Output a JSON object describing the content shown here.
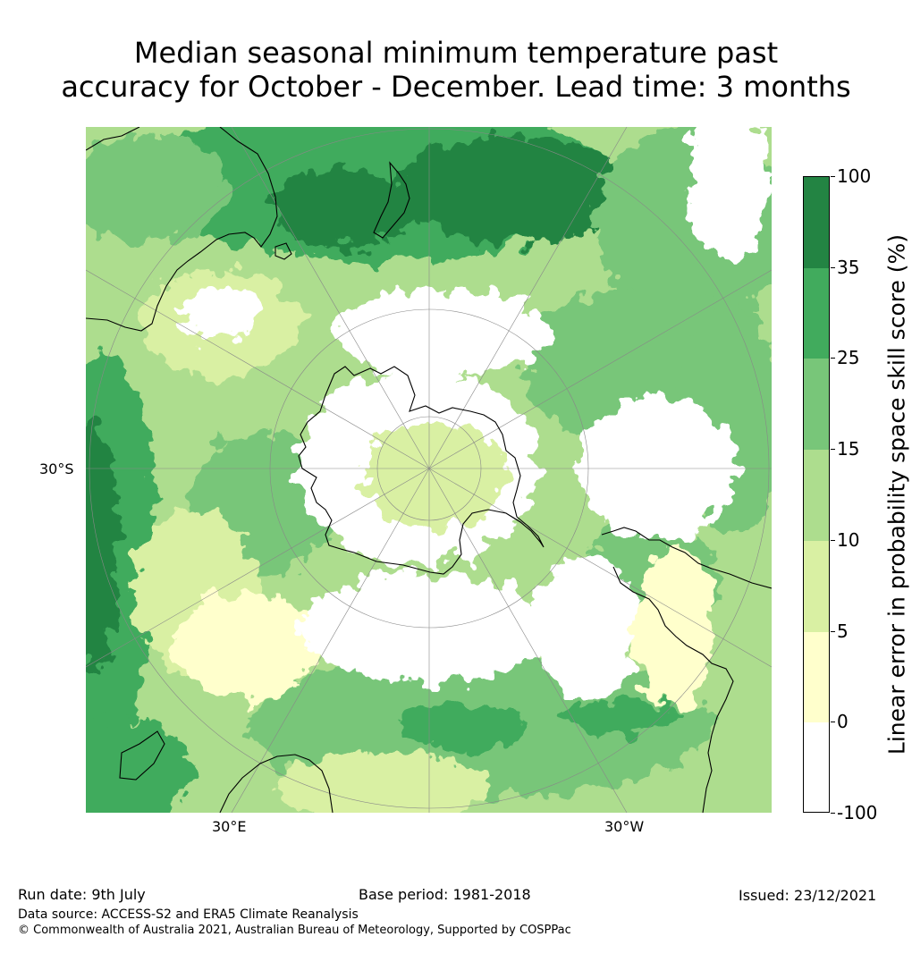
{
  "title_line1": "Median seasonal minimum temperature past",
  "title_line2": "accuracy for October - December. Lead time: 3 months",
  "map": {
    "projection": "south polar stereographic",
    "graticule_labels": {
      "lat": "30°S",
      "lon_left": "30°E",
      "lon_right": "30°W"
    },
    "palette": {
      "land_outline": "#000000",
      "graticule": "#888888"
    }
  },
  "colorbar": {
    "title": "Linear error in probability space skill score (%)",
    "ticks": [
      "100",
      "35",
      "25",
      "15",
      "10",
      "5",
      "0",
      "-100"
    ],
    "bins": [
      {
        "range": "35 to 100",
        "color": "#238443"
      },
      {
        "range": "25 to 35",
        "color": "#41ab5d"
      },
      {
        "range": "15 to 25",
        "color": "#78c679"
      },
      {
        "range": "10 to 15",
        "color": "#addd8e"
      },
      {
        "range": "5 to 10",
        "color": "#d9f0a3"
      },
      {
        "range": "0 to 5",
        "color": "#ffffcc"
      },
      {
        "range": "-100 to 0",
        "color": "#ffffff"
      }
    ]
  },
  "footer": {
    "run_date": "Run date: 9th July",
    "base_period": "Base period: 1981-2018",
    "issued": "Issued: 23/12/2021",
    "data_source": "Data source: ACCESS-S2 and ERA5 Climate Reanalysis",
    "copyright": "© Commonwealth of Australia 2021, Australian Bureau of Meteorology, Supported by COSPPac"
  }
}
